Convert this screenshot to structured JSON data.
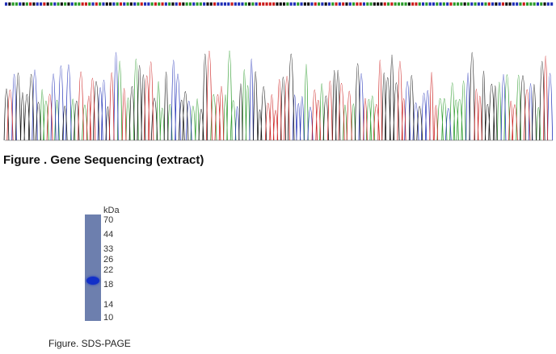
{
  "sequencing": {
    "caption": "Figure . Gene Sequencing (extract)",
    "colors": {
      "A": "#2e9c2e",
      "C": "#2433b8",
      "G": "#111111",
      "T": "#cc2020"
    }
  },
  "sds_page": {
    "unit": "kDa",
    "markers": [
      "70",
      "44",
      "33",
      "26",
      "22",
      "18",
      "14",
      "10"
    ],
    "caption": "Figure. SDS-PAGE",
    "band_marker": "18"
  }
}
